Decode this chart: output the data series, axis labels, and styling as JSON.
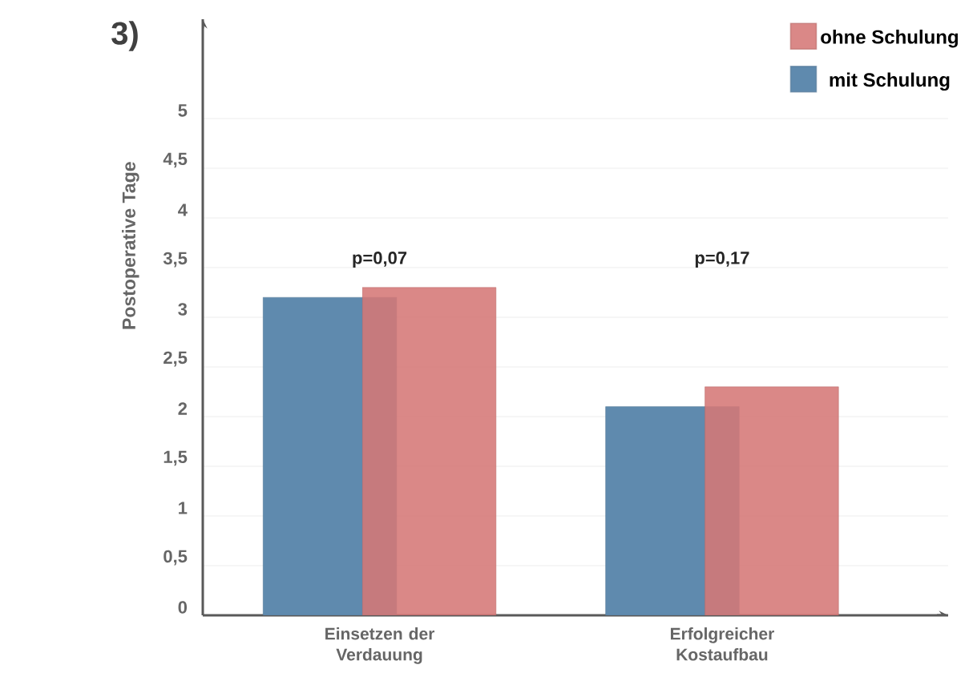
{
  "chart_data": {
    "type": "bar",
    "title": "3)",
    "ylabel": "Postoperative Tage",
    "categories": [
      "Einsetzen der Verdauung",
      "Erfolgreicher Kostaufbau"
    ],
    "series": [
      {
        "name": "mit Schulung",
        "color": "#5f8aae",
        "values": [
          3.2,
          2.1
        ]
      },
      {
        "name": "ohne Schulung",
        "color": "#d57876",
        "values": [
          3.3,
          2.3
        ]
      }
    ],
    "ylim": [
      0,
      6
    ],
    "yticks": [
      0,
      {
        "value": 0.5,
        "label": "0,5"
      },
      1,
      {
        "value": 1.5,
        "label": "1,5"
      },
      2,
      {
        "value": 2.5,
        "label": "2,5"
      },
      3,
      {
        "value": 3.5,
        "label": "3,5"
      },
      4,
      {
        "value": 4.5,
        "label": "4,5"
      },
      5
    ],
    "grid": "y",
    "legend": "top right",
    "annotations": [
      "p=0,07",
      "p=0,17"
    ]
  }
}
